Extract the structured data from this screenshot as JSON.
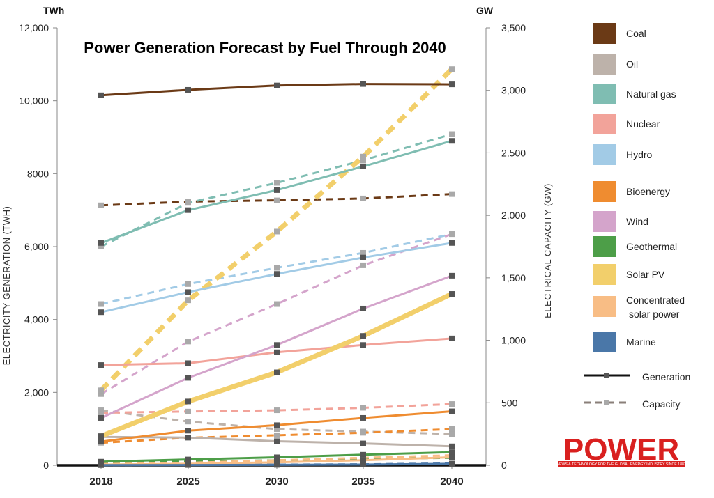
{
  "chart_data": {
    "type": "line",
    "title": "Power Generation Forecast by Fuel Through 2040",
    "left_unit": "TWh",
    "right_unit": "GW",
    "ylabel": "ELECTRICITY GENERATION (TWH)",
    "y2label": "ELECTRICAL CAPACITY (GW)",
    "x": [
      2018,
      2025,
      2030,
      2035,
      2040
    ],
    "x_tick_labels": [
      "2018",
      "2025",
      "2030",
      "2035",
      "2040"
    ],
    "ylim": [
      0,
      12000
    ],
    "y2lim": [
      0,
      3500
    ],
    "y_ticks": [
      {
        "value": 0,
        "label": "0"
      },
      {
        "value": 2000,
        "label": "2,000"
      },
      {
        "value": 4000,
        "label": "4,000"
      },
      {
        "value": 6000,
        "label": "6,000"
      },
      {
        "value": 8000,
        "label": "8000"
      },
      {
        "value": 10000,
        "label": "10,000"
      },
      {
        "value": 12000,
        "label": "12,000"
      }
    ],
    "y2_ticks": [
      {
        "value": 0,
        "label": "0"
      },
      {
        "value": 500,
        "label": "500"
      },
      {
        "value": 1000,
        "label": "1,000"
      },
      {
        "value": 1500,
        "label": "1,500"
      },
      {
        "value": 2000,
        "label": "2,000"
      },
      {
        "value": 2500,
        "label": "2,500"
      },
      {
        "value": 3000,
        "label": "3,000"
      },
      {
        "value": 3500,
        "label": "3,500"
      }
    ],
    "legend_placement": "right",
    "grid": false,
    "series": [
      {
        "name": "Coal",
        "color": "#6b3a16",
        "generation": [
          10150,
          10300,
          10420,
          10460,
          10450
        ],
        "capacity": [
          2080,
          2110,
          2120,
          2135,
          2170
        ]
      },
      {
        "name": "Oil",
        "color": "#bdb2aa",
        "generation": [
          780,
          760,
          660,
          600,
          520
        ],
        "capacity": [
          440,
          350,
          290,
          270,
          250
        ]
      },
      {
        "name": "Natural gas",
        "color": "#7fbdb2",
        "generation": [
          6100,
          7000,
          7550,
          8200,
          8900
        ],
        "capacity": [
          1750,
          2100,
          2260,
          2440,
          2650
        ]
      },
      {
        "name": "Nuclear",
        "color": "#f2a39a",
        "generation": [
          2750,
          2800,
          3100,
          3300,
          3480
        ],
        "capacity": [
          420,
          430,
          440,
          460,
          490
        ]
      },
      {
        "name": "Hydro",
        "color": "#a2cbe6",
        "generation": [
          4200,
          4750,
          5250,
          5700,
          6100
        ],
        "capacity": [
          1290,
          1450,
          1580,
          1700,
          1850
        ]
      },
      {
        "name": "Bioenergy",
        "color": "#ef8c30",
        "generation": [
          650,
          950,
          1100,
          1300,
          1480
        ],
        "capacity": [
          180,
          220,
          240,
          260,
          290
        ]
      },
      {
        "name": "Wind",
        "color": "#d4a4cb",
        "generation": [
          1300,
          2400,
          3300,
          4300,
          5200
        ],
        "capacity": [
          570,
          990,
          1290,
          1600,
          1850
        ]
      },
      {
        "name": "Geothermal",
        "color": "#4d9e48",
        "generation": [
          100,
          160,
          220,
          290,
          360
        ],
        "capacity": [
          20,
          30,
          40,
          50,
          60
        ]
      },
      {
        "name": "Solar PV",
        "color": "#f2cf6b",
        "generation": [
          800,
          1750,
          2550,
          3550,
          4700
        ],
        "capacity": [
          600,
          1320,
          1870,
          2470,
          3170
        ]
      },
      {
        "name": "Concentrated solar power",
        "color": "#f8bd85",
        "generation": [
          20,
          40,
          80,
          140,
          220
        ],
        "capacity": [
          10,
          20,
          40,
          60,
          80
        ]
      },
      {
        "name": "Marine",
        "color": "#4a77a8",
        "generation": [
          5,
          8,
          12,
          20,
          40
        ],
        "capacity": [
          2,
          3,
          5,
          8,
          15
        ]
      }
    ],
    "legend_items": [
      {
        "label": "Coal",
        "color": "#6b3a16"
      },
      {
        "label": "Oil",
        "color": "#bdb2aa"
      },
      {
        "label": "Natural gas",
        "color": "#7fbdb2"
      },
      {
        "label": "Nuclear",
        "color": "#f2a39a"
      },
      {
        "label": "Hydro",
        "color": "#a2cbe6"
      },
      {
        "label": "Bioenergy",
        "color": "#ef8c30"
      },
      {
        "label": "Wind",
        "color": "#d4a4cb"
      },
      {
        "label": "Geothermal",
        "color": "#4d9e48"
      },
      {
        "label": "Solar PV",
        "color": "#f2cf6b"
      },
      {
        "label": "Concentrated",
        "label2": "solar power",
        "color": "#f8bd85"
      },
      {
        "label": "Marine",
        "color": "#4a77a8"
      }
    ],
    "line_legend": {
      "generation": "Generation",
      "capacity": "Capacity"
    }
  },
  "logo": {
    "main": "POWER",
    "tagline": "NEWS & TECHNOLOGY FOR THE GLOBAL ENERGY INDUSTRY SINCE 1882"
  }
}
